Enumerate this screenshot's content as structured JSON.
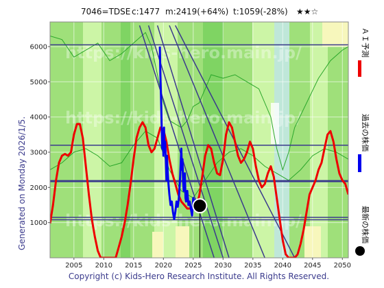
{
  "header": {
    "code": "7046=TDSE",
    "current": "c:1477",
    "mid": "m:2419(+64%)",
    "target": "t:1059(-28%)",
    "stars": "★★☆"
  },
  "side_label": "Generated on Monday 2026/1/5.",
  "footer": "Copyright (c) Kids-Hero Research Institute. All Rights Reserved.",
  "watermark": "https://kids-hero.main.jp/",
  "legend": [
    {
      "label": "ＡＩ予測",
      "color": "#ee0000"
    },
    {
      "label": "過去の株価",
      "color": "#0000ee"
    },
    {
      "label": "最新の株価",
      "color": "#000000"
    }
  ],
  "colors": {
    "band_light": "#ccf5a6",
    "band_mid": "#9fe07a",
    "band_dark": "#7fd463",
    "band_yellow": "#f7f7bc",
    "band_teal": "#bfe7d9",
    "prediction": "#ee0000",
    "history": "#0000ee",
    "trend": "#3a3a8c",
    "green_line": "#2aa62a"
  },
  "chart_data": {
    "type": "line",
    "xlim": [
      2001,
      2051
    ],
    "ylim": [
      0,
      6700
    ],
    "xticks": [
      2005,
      2010,
      2015,
      2020,
      2025,
      2030,
      2035,
      2040,
      2045,
      2050
    ],
    "yticks": [
      1000,
      2000,
      3000,
      4000,
      5000,
      6000
    ],
    "series": [
      {
        "key": "ai_prediction",
        "x": [
          2001,
          2001.5,
          2002,
          2002.5,
          2003,
          2003.5,
          2004,
          2004.5,
          2005,
          2005.5,
          2006,
          2006.5,
          2007,
          2007.5,
          2008,
          2008.5,
          2009,
          2009.5,
          2010,
          2010.3,
          2010.8,
          2011.5,
          2012,
          2012.5,
          2013,
          2013.5,
          2014,
          2014.5,
          2015,
          2015.5,
          2016,
          2016.5,
          2017,
          2017.5,
          2018,
          2018.5,
          2019,
          2019.5,
          2020,
          2020.5,
          2021,
          2021.5,
          2022,
          2022.5,
          2023,
          2023.5,
          2024,
          2024.5,
          2025,
          2025.5,
          2026,
          2026.5,
          2027,
          2027.5,
          2028,
          2028.5,
          2029,
          2029.5,
          2030,
          2030.5,
          2031,
          2031.5,
          2032,
          2032.5,
          2033,
          2033.5,
          2034,
          2034.5,
          2035,
          2035.5,
          2036,
          2036.5,
          2037,
          2037.5,
          2038,
          2038.5,
          2039,
          2039.5,
          2040,
          2040.5,
          2041,
          2041.5,
          2042,
          2042.5,
          2043,
          2043.5,
          2044,
          2044.5,
          2045,
          2045.5,
          2046,
          2046.5,
          2047,
          2047.5,
          2048,
          2048.5,
          2049,
          2049.5,
          2050,
          2050.5,
          2051
        ],
        "y": [
          980,
          1500,
          2200,
          2700,
          2900,
          2950,
          2900,
          3000,
          3500,
          3800,
          3800,
          3400,
          2600,
          1800,
          1100,
          600,
          200,
          0,
          0,
          0,
          0,
          0,
          0,
          300,
          600,
          1000,
          1500,
          2100,
          2800,
          3400,
          3700,
          3850,
          3700,
          3200,
          3000,
          3100,
          3400,
          3700,
          3650,
          3300,
          2800,
          2400,
          2100,
          1800,
          1600,
          1500,
          1400,
          1400,
          1450,
          1500,
          1750,
          2300,
          2900,
          3200,
          3100,
          2700,
          2400,
          2350,
          2800,
          3500,
          3850,
          3700,
          3300,
          2900,
          2700,
          2800,
          3000,
          3300,
          3100,
          2600,
          2200,
          2000,
          2100,
          2400,
          2600,
          2300,
          1700,
          1100,
          500,
          100,
          0,
          0,
          0,
          100,
          400,
          800,
          1300,
          1800,
          2000,
          2200,
          2500,
          2700,
          3100,
          3500,
          3600,
          3300,
          2800,
          2400,
          2200,
          2100,
          1800
        ]
      },
      {
        "key": "history",
        "x": [
          2019.4,
          2019.5,
          2019.6,
          2019.7,
          2019.8,
          2019.9,
          2020.0,
          2020.1,
          2020.2,
          2020.3,
          2020.4,
          2020.5,
          2020.6,
          2020.7,
          2020.8,
          2020.9,
          2021.0,
          2021.2,
          2021.4,
          2021.6,
          2021.8,
          2022.0,
          2022.2,
          2022.4,
          2022.6,
          2022.8,
          2023.0,
          2023.1,
          2023.2,
          2023.3,
          2023.4,
          2023.5,
          2023.6,
          2023.7,
          2023.8,
          2023.9,
          2024.0,
          2024.2,
          2024.4,
          2024.6,
          2024.8,
          2025.0,
          2025.2,
          2025.4,
          2025.6,
          2025.8,
          2026.0
        ],
        "y": [
          6000,
          5200,
          4600,
          3800,
          3100,
          3600,
          2900,
          3700,
          3000,
          3300,
          2800,
          2200,
          2900,
          2500,
          2200,
          2000,
          1800,
          1500,
          1600,
          1300,
          1100,
          1300,
          1600,
          1450,
          1700,
          2300,
          3100,
          2500,
          2800,
          2200,
          1900,
          2100,
          2400,
          1700,
          1600,
          1800,
          1900,
          1500,
          1600,
          1400,
          1200,
          1700,
          1500,
          1650,
          1450,
          1550,
          1477
        ]
      },
      {
        "key": "upper_green_line",
        "x": [
          2001,
          2003,
          2005,
          2007,
          2009,
          2011,
          2013,
          2015,
          2017,
          2018,
          2019,
          2020,
          2021,
          2022,
          2023,
          2024,
          2025,
          2026,
          2027,
          2028,
          2030,
          2032,
          2034,
          2036,
          2038,
          2039,
          2040,
          2041,
          2042,
          2044,
          2046,
          2048,
          2050,
          2051
        ],
        "y": [
          6300,
          6200,
          5700,
          5900,
          6100,
          5600,
          5800,
          6100,
          6400,
          6000,
          5200,
          4400,
          3900,
          3800,
          3700,
          3900,
          4300,
          4400,
          4800,
          5200,
          5100,
          5200,
          5000,
          4800,
          4000,
          3100,
          2500,
          3000,
          3700,
          4400,
          5100,
          5600,
          5900,
          6000
        ]
      },
      {
        "key": "lower_green_line",
        "x": [
          2001,
          2003,
          2005,
          2007,
          2009,
          2011,
          2013,
          2015,
          2017,
          2019,
          2021,
          2023,
          2025,
          2027,
          2029,
          2031,
          2033,
          2035,
          2037,
          2039,
          2041,
          2043,
          2045,
          2047,
          2049,
          2051
        ],
        "y": [
          2500,
          2700,
          3000,
          3100,
          2900,
          2600,
          2700,
          3200,
          3600,
          3400,
          2500,
          1900,
          1700,
          2200,
          2700,
          3000,
          3100,
          2900,
          2600,
          2400,
          2200,
          2500,
          2900,
          3100,
          3000,
          2800
        ]
      }
    ],
    "horizontal_lines": [
      6050,
      3200,
      2180,
      1150,
      1080
    ],
    "trend_lines": [
      {
        "x": [
          2019,
          2031
        ],
        "y": [
          6600,
          0
        ]
      },
      {
        "x": [
          2017.5,
          2030
        ],
        "y": [
          6600,
          0
        ]
      },
      {
        "x": [
          2016,
          2028.5
        ],
        "y": [
          6600,
          0
        ]
      },
      {
        "x": [
          2021,
          2037
        ],
        "y": [
          6600,
          0
        ]
      },
      {
        "x": [
          2022,
          2042
        ],
        "y": [
          6600,
          0
        ]
      }
    ],
    "latest": {
      "x": 2026.1,
      "y": 1477
    }
  }
}
